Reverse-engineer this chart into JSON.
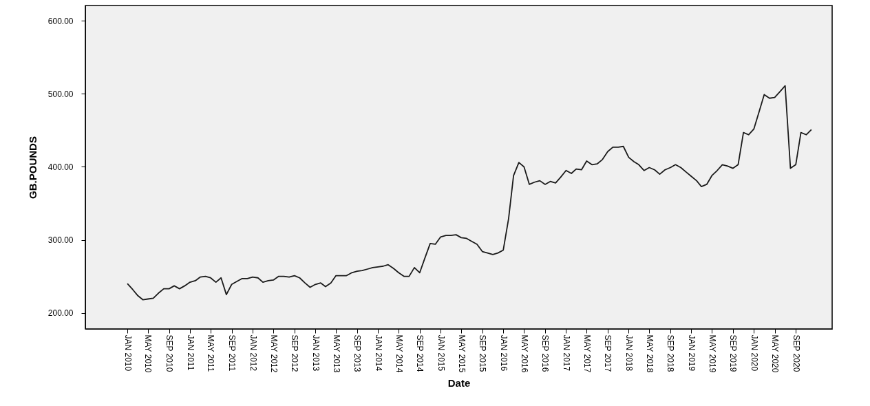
{
  "chart_data": {
    "type": "line",
    "xlabel": "Date",
    "ylabel": "GB.POUNDS",
    "x": [
      "2010-01",
      "2010-02",
      "2010-03",
      "2010-04",
      "2010-05",
      "2010-06",
      "2010-07",
      "2010-08",
      "2010-09",
      "2010-10",
      "2010-11",
      "2010-12",
      "2011-01",
      "2011-02",
      "2011-03",
      "2011-04",
      "2011-05",
      "2011-06",
      "2011-07",
      "2011-08",
      "2011-09",
      "2011-10",
      "2011-11",
      "2011-12",
      "2012-01",
      "2012-02",
      "2012-03",
      "2012-04",
      "2012-05",
      "2012-06",
      "2012-07",
      "2012-08",
      "2012-09",
      "2012-10",
      "2012-11",
      "2012-12",
      "2013-01",
      "2013-02",
      "2013-03",
      "2013-04",
      "2013-05",
      "2013-06",
      "2013-07",
      "2013-08",
      "2013-09",
      "2013-10",
      "2013-11",
      "2013-12",
      "2014-01",
      "2014-02",
      "2014-03",
      "2014-04",
      "2014-05",
      "2014-06",
      "2014-07",
      "2014-08",
      "2014-09",
      "2014-10",
      "2014-11",
      "2014-12",
      "2015-01",
      "2015-02",
      "2015-03",
      "2015-04",
      "2015-05",
      "2015-06",
      "2015-07",
      "2015-08",
      "2015-09",
      "2015-10",
      "2015-11",
      "2015-12",
      "2016-01",
      "2016-02",
      "2016-03",
      "2016-04",
      "2016-05",
      "2016-06",
      "2016-07",
      "2016-08",
      "2016-09",
      "2016-10",
      "2016-11",
      "2016-12",
      "2017-01",
      "2017-02",
      "2017-03",
      "2017-04",
      "2017-05",
      "2017-06",
      "2017-07",
      "2017-08",
      "2017-09",
      "2017-10",
      "2017-11",
      "2017-12",
      "2018-01",
      "2018-02",
      "2018-03",
      "2018-04",
      "2018-05",
      "2018-06",
      "2018-07",
      "2018-08",
      "2018-09",
      "2018-10",
      "2018-11",
      "2018-12",
      "2019-01",
      "2019-02",
      "2019-03",
      "2019-04",
      "2019-05",
      "2019-06",
      "2019-07",
      "2019-08",
      "2019-09",
      "2019-10",
      "2019-11",
      "2019-12",
      "2020-01",
      "2020-02",
      "2020-03",
      "2020-04",
      "2020-05",
      "2020-06",
      "2020-07",
      "2020-08",
      "2020-09",
      "2020-10",
      "2020-11",
      "2020-12"
    ],
    "series": [
      {
        "color": "#1a1a1a",
        "values": [
          240,
          232,
          224,
          218,
          219,
          220,
          227,
          233,
          233,
          237,
          233,
          237,
          242,
          244,
          249,
          250,
          248,
          242,
          248,
          225,
          239,
          243,
          247,
          247,
          249,
          248,
          242,
          244,
          245,
          250,
          250,
          249,
          251,
          248,
          241,
          235,
          239,
          241,
          236,
          241,
          251,
          251,
          251,
          255,
          257,
          258,
          260,
          262,
          263,
          264,
          266,
          261,
          255,
          250,
          250,
          262,
          255,
          275,
          295,
          294,
          304,
          306,
          306,
          307,
          303,
          302,
          298,
          294,
          284,
          282,
          280,
          282,
          286,
          329,
          388,
          406,
          400,
          376,
          379,
          381,
          376,
          380,
          378,
          386,
          395,
          391,
          397,
          396,
          408,
          403,
          404,
          410,
          421,
          427,
          427,
          428,
          413,
          407,
          403,
          395,
          399,
          396,
          390,
          396,
          399,
          403,
          399,
          393,
          387,
          381,
          373,
          376,
          388,
          395,
          403,
          401,
          398,
          403,
          447,
          444,
          452,
          476,
          499,
          494,
          495,
          503,
          511,
          398,
          403,
          447,
          444,
          451
        ]
      }
    ],
    "xlim": [
      "2009-05",
      "2021-04"
    ],
    "xticks": [
      {
        "value": "2010-01",
        "label": "JAN 2010"
      },
      {
        "value": "2010-05",
        "label": "MAY 2010"
      },
      {
        "value": "2010-09",
        "label": "SEP 2010"
      },
      {
        "value": "2011-01",
        "label": "JAN 2011"
      },
      {
        "value": "2011-05",
        "label": "MAY 2011"
      },
      {
        "value": "2011-09",
        "label": "SEP 2011"
      },
      {
        "value": "2012-01",
        "label": "JAN 2012"
      },
      {
        "value": "2012-05",
        "label": "MAY 2012"
      },
      {
        "value": "2012-09",
        "label": "SEP 2012"
      },
      {
        "value": "2013-01",
        "label": "JAN 2013"
      },
      {
        "value": "2013-05",
        "label": "MAY 2013"
      },
      {
        "value": "2013-09",
        "label": "SEP 2013"
      },
      {
        "value": "2014-01",
        "label": "JAN 2014"
      },
      {
        "value": "2014-05",
        "label": "MAY 2014"
      },
      {
        "value": "2014-09",
        "label": "SEP 2014"
      },
      {
        "value": "2015-01",
        "label": "JAN 2015"
      },
      {
        "value": "2015-05",
        "label": "MAY 2015"
      },
      {
        "value": "2015-09",
        "label": "SEP 2015"
      },
      {
        "value": "2016-01",
        "label": "JAN 2016"
      },
      {
        "value": "2016-05",
        "label": "MAY 2016"
      },
      {
        "value": "2016-09",
        "label": "SEP 2016"
      },
      {
        "value": "2017-01",
        "label": "JAN 2017"
      },
      {
        "value": "2017-05",
        "label": "MAY 2017"
      },
      {
        "value": "2017-09",
        "label": "SEP 2017"
      },
      {
        "value": "2018-01",
        "label": "JAN 2018"
      },
      {
        "value": "2018-05",
        "label": "MAY 2018"
      },
      {
        "value": "2018-09",
        "label": "SEP 2018"
      },
      {
        "value": "2019-01",
        "label": "JAN 2019"
      },
      {
        "value": "2019-05",
        "label": "MAY 2019"
      },
      {
        "value": "2019-09",
        "label": "SEP 2019"
      },
      {
        "value": "2020-01",
        "label": "JAN 2020"
      },
      {
        "value": "2020-05",
        "label": "MAY 2020"
      },
      {
        "value": "2020-09",
        "label": "SEP 2020"
      }
    ],
    "ylim": [
      178,
      621
    ],
    "yticks": [
      {
        "value": 200,
        "label": "200.00"
      },
      {
        "value": 300,
        "label": "300.00"
      },
      {
        "value": 400,
        "label": "400.00"
      },
      {
        "value": 500,
        "label": "500.00"
      },
      {
        "value": 600,
        "label": "600.00"
      }
    ],
    "grid": false,
    "marker": "none",
    "line_style": "solid"
  }
}
